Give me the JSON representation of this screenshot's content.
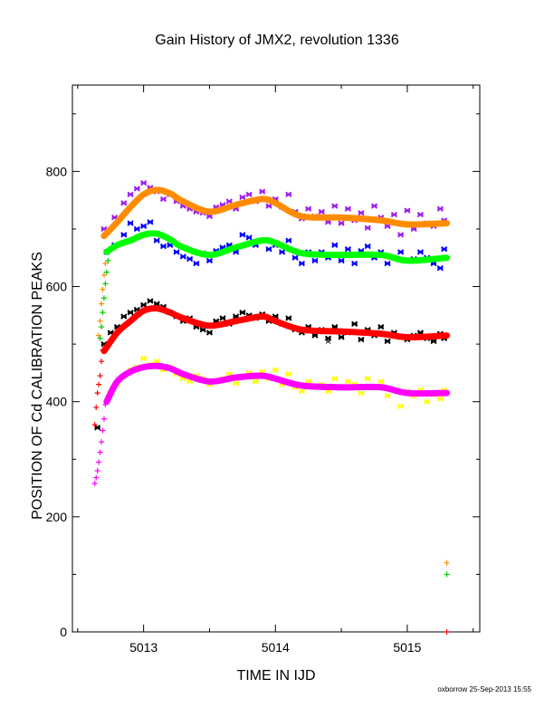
{
  "chart_data": {
    "type": "scatter",
    "title": "Gain History of JMX2, revolution 1336",
    "xlabel": "TIME IN IJD",
    "ylabel": "POSITION OF Cd CALIBRATION PEAKS",
    "xlim": [
      5012.46,
      5015.55
    ],
    "ylim": [
      0,
      950
    ],
    "x_ticks": [
      5013,
      5014,
      5015
    ],
    "y_ticks": [
      0,
      200,
      400,
      600,
      800
    ],
    "grid": false,
    "footer": "oxborrow 25-Sep-2013 15:55",
    "series": [
      {
        "marker": "star",
        "color": "#a020f0",
        "x": [
          5012.7,
          5012.78,
          5012.85,
          5012.9,
          5012.95,
          5013.0,
          5013.05,
          5013.1,
          5013.15,
          5013.2,
          5013.25,
          5013.3,
          5013.35,
          5013.4,
          5013.45,
          5013.5,
          5013.55,
          5013.6,
          5013.65,
          5013.7,
          5013.75,
          5013.8,
          5013.85,
          5013.9,
          5013.95,
          5014.0,
          5014.05,
          5014.1,
          5014.15,
          5014.2,
          5014.25,
          5014.3,
          5014.35,
          5014.4,
          5014.45,
          5014.5,
          5014.55,
          5014.6,
          5014.65,
          5014.7,
          5014.75,
          5014.8,
          5014.85,
          5014.9,
          5014.95,
          5015.0,
          5015.05,
          5015.1,
          5015.15,
          5015.2,
          5015.25,
          5015.28
        ],
        "y": [
          700,
          720,
          745,
          760,
          770,
          780,
          772,
          765,
          752,
          760,
          748,
          740,
          735,
          730,
          728,
          722,
          738,
          742,
          748,
          735,
          755,
          760,
          748,
          765,
          740,
          752,
          738,
          760,
          730,
          718,
          735,
          722,
          730,
          712,
          740,
          710,
          735,
          715,
          728,
          702,
          740,
          720,
          705,
          725,
          690,
          732,
          700,
          725,
          710,
          705,
          735,
          715
        ]
      },
      {
        "marker": "star",
        "color": "#0000ff",
        "x": [
          5012.72,
          5012.78,
          5012.85,
          5012.9,
          5012.95,
          5013.0,
          5013.05,
          5013.1,
          5013.15,
          5013.2,
          5013.25,
          5013.3,
          5013.35,
          5013.4,
          5013.45,
          5013.5,
          5013.55,
          5013.6,
          5013.65,
          5013.7,
          5013.75,
          5013.8,
          5013.85,
          5013.9,
          5013.95,
          5014.0,
          5014.05,
          5014.1,
          5014.15,
          5014.2,
          5014.25,
          5014.3,
          5014.35,
          5014.4,
          5014.45,
          5014.5,
          5014.55,
          5014.6,
          5014.65,
          5014.7,
          5014.75,
          5014.8,
          5014.85,
          5014.9,
          5014.95,
          5015.0,
          5015.05,
          5015.1,
          5015.15,
          5015.2,
          5015.25,
          5015.28
        ],
        "y": [
          660,
          672,
          690,
          710,
          700,
          705,
          712,
          680,
          670,
          672,
          660,
          652,
          648,
          640,
          658,
          645,
          662,
          668,
          672,
          660,
          690,
          685,
          672,
          680,
          665,
          672,
          660,
          680,
          650,
          640,
          660,
          645,
          660,
          650,
          672,
          645,
          665,
          640,
          662,
          670,
          650,
          660,
          640,
          650,
          660,
          645,
          648,
          660,
          650,
          640,
          632,
          665
        ]
      },
      {
        "marker": "star",
        "color": "#000000",
        "x": [
          5012.65,
          5012.7,
          5012.75,
          5012.8,
          5012.85,
          5012.9,
          5012.95,
          5013.0,
          5013.05,
          5013.1,
          5013.15,
          5013.2,
          5013.25,
          5013.3,
          5013.35,
          5013.4,
          5013.45,
          5013.5,
          5013.55,
          5013.6,
          5013.65,
          5013.7,
          5013.75,
          5013.8,
          5013.85,
          5013.9,
          5013.95,
          5014.0,
          5014.05,
          5014.1,
          5014.15,
          5014.2,
          5014.25,
          5014.3,
          5014.35,
          5014.4,
          5014.45,
          5014.5,
          5014.55,
          5014.6,
          5014.65,
          5014.7,
          5014.75,
          5014.8,
          5014.85,
          5014.9,
          5014.95,
          5015.0,
          5015.05,
          5015.1,
          5015.15,
          5015.2,
          5015.25,
          5015.28
        ],
        "y": [
          355,
          500,
          520,
          530,
          548,
          555,
          560,
          568,
          575,
          570,
          565,
          555,
          548,
          540,
          545,
          530,
          525,
          520,
          540,
          545,
          535,
          548,
          555,
          550,
          545,
          552,
          540,
          548,
          535,
          545,
          525,
          520,
          530,
          515,
          525,
          510,
          530,
          512,
          520,
          535,
          508,
          525,
          515,
          530,
          505,
          520,
          512,
          508,
          515,
          520,
          510,
          505,
          518,
          510
        ]
      },
      {
        "marker": "star",
        "color": "#ffff00",
        "x": [
          5012.75,
          5012.8,
          5012.85,
          5012.9,
          5012.95,
          5013.0,
          5013.05,
          5013.1,
          5013.15,
          5013.2,
          5013.25,
          5013.3,
          5013.35,
          5013.4,
          5013.45,
          5013.5,
          5013.55,
          5013.6,
          5013.65,
          5013.7,
          5013.75,
          5013.8,
          5013.85,
          5013.9,
          5013.95,
          5014.0,
          5014.05,
          5014.1,
          5014.15,
          5014.2,
          5014.25,
          5014.3,
          5014.35,
          5014.4,
          5014.45,
          5014.5,
          5014.55,
          5014.6,
          5014.65,
          5014.7,
          5014.75,
          5014.8,
          5014.85,
          5014.9,
          5014.95,
          5015.0,
          5015.05,
          5015.1,
          5015.15,
          5015.2,
          5015.25,
          5015.28
        ],
        "y": [
          415,
          430,
          445,
          455,
          460,
          475,
          465,
          470,
          455,
          460,
          448,
          440,
          435,
          445,
          440,
          430,
          435,
          440,
          448,
          432,
          442,
          450,
          435,
          452,
          440,
          455,
          430,
          448,
          425,
          418,
          435,
          425,
          430,
          418,
          440,
          425,
          435,
          430,
          415,
          440,
          425,
          435,
          410,
          420,
          392,
          418,
          410,
          420,
          400,
          412,
          405,
          420
        ]
      },
      {
        "marker": "x",
        "color": "#000000",
        "x": [
          5013.5,
          5014.4,
          5015.2
        ],
        "y": [
          520,
          505,
          512
        ]
      },
      {
        "marker": "plus",
        "color": "#ff8c00",
        "x": [
          5012.66,
          5012.67,
          5012.68,
          5012.69,
          5012.7,
          5012.71,
          5012.72,
          5015.3
        ],
        "y": [
          515,
          540,
          570,
          595,
          620,
          640,
          660,
          120
        ]
      },
      {
        "marker": "plus",
        "color": "#00cc00",
        "x": [
          5012.67,
          5012.68,
          5012.69,
          5012.7,
          5012.71,
          5012.72,
          5012.73,
          5015.3
        ],
        "y": [
          510,
          530,
          555,
          580,
          605,
          625,
          645,
          100
        ]
      },
      {
        "marker": "plus",
        "color": "#ff0000",
        "x": [
          5012.63,
          5012.64,
          5012.65,
          5012.66,
          5012.67,
          5012.68,
          5012.69,
          5015.3
        ],
        "y": [
          360,
          390,
          415,
          430,
          445,
          470,
          490,
          0
        ]
      },
      {
        "marker": "plus",
        "color": "#ff00ff",
        "x": [
          5012.63,
          5012.64,
          5012.65,
          5012.66,
          5012.67,
          5012.68,
          5012.69,
          5012.7,
          5012.71
        ],
        "y": [
          258,
          268,
          280,
          295,
          312,
          330,
          350,
          370,
          395
        ]
      }
    ],
    "fits": [
      {
        "color": "#ff8c00",
        "x": [
          5012.7,
          5012.8,
          5012.9,
          5013.0,
          5013.1,
          5013.2,
          5013.3,
          5013.5,
          5013.7,
          5013.9,
          5014.0,
          5014.2,
          5014.5,
          5014.8,
          5015.0,
          5015.3
        ],
        "y": [
          688,
          712,
          738,
          760,
          768,
          762,
          748,
          730,
          742,
          752,
          745,
          722,
          720,
          715,
          708,
          710
        ]
      },
      {
        "color": "#00ff00",
        "x": [
          5012.72,
          5012.8,
          5012.9,
          5013.0,
          5013.1,
          5013.2,
          5013.3,
          5013.5,
          5013.7,
          5013.9,
          5014.0,
          5014.2,
          5014.5,
          5014.8,
          5015.0,
          5015.3
        ],
        "y": [
          660,
          672,
          680,
          690,
          692,
          682,
          668,
          655,
          668,
          680,
          676,
          658,
          655,
          655,
          645,
          650
        ]
      },
      {
        "color": "#ff0000",
        "x": [
          5012.7,
          5012.8,
          5012.9,
          5013.0,
          5013.1,
          5013.2,
          5013.3,
          5013.5,
          5013.7,
          5013.9,
          5014.0,
          5014.2,
          5014.5,
          5014.8,
          5015.0,
          5015.3
        ],
        "y": [
          488,
          520,
          540,
          558,
          562,
          555,
          545,
          532,
          540,
          548,
          540,
          525,
          522,
          518,
          512,
          515
        ]
      },
      {
        "color": "#ff00ff",
        "x": [
          5012.72,
          5012.8,
          5012.9,
          5013.0,
          5013.1,
          5013.2,
          5013.3,
          5013.5,
          5013.7,
          5013.9,
          5014.0,
          5014.2,
          5014.5,
          5014.8,
          5015.0,
          5015.3
        ],
        "y": [
          400,
          435,
          452,
          460,
          462,
          458,
          448,
          435,
          442,
          445,
          440,
          428,
          425,
          425,
          415,
          415
        ]
      }
    ]
  }
}
